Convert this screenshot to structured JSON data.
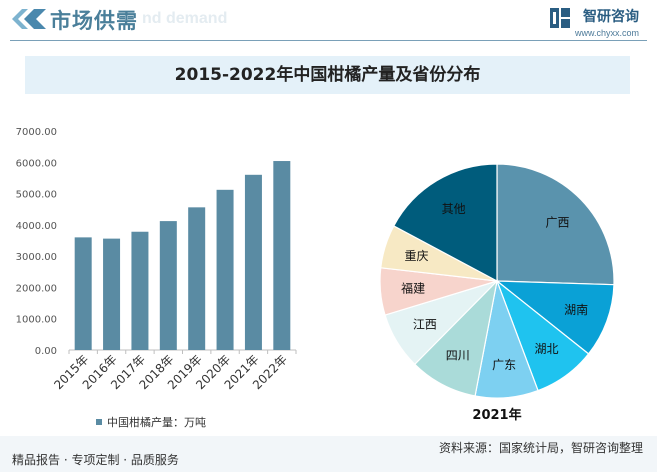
{
  "header": {
    "section_title": "市场供需",
    "section_title_en": "nd demand",
    "logo_text": "智研咨询",
    "logo_url": "www.chyxx.com"
  },
  "title": "2015-2022年中国柑橘产量及省份分布",
  "chart_data": [
    {
      "type": "bar",
      "categories": [
        "2015年",
        "2016年",
        "2017年",
        "2018年",
        "2019年",
        "2020年",
        "2021年",
        "2022年"
      ],
      "values": [
        3600,
        3560,
        3780,
        4120,
        4560,
        5120,
        5600,
        6040
      ],
      "ylim": [
        0,
        7000
      ],
      "yticks": [
        "0.00",
        "1000.00",
        "2000.00",
        "3000.00",
        "4000.00",
        "5000.00",
        "6000.00",
        "7000.00"
      ],
      "legend": "中国柑橘产量：万吨",
      "color": "#5a8ba3"
    },
    {
      "type": "pie",
      "title": "2021年",
      "labels": [
        "广西",
        "湖南",
        "湖北",
        "广东",
        "四川",
        "江西",
        "福建",
        "重庆",
        "其他"
      ],
      "values": [
        25.5,
        10.2,
        8.6,
        8.7,
        9.4,
        7.9,
        6.5,
        6.0,
        17.2
      ],
      "colors": [
        "#5a93ad",
        "#0aa1d6",
        "#1fc3ef",
        "#7dd0f1",
        "#aadbd9",
        "#e4f3f4",
        "#f7d4cc",
        "#f7e9c4",
        "#005c7c"
      ]
    }
  ],
  "footer": {
    "left": "精品报告 · 专项定制 · 品质服务",
    "right": "资料来源：国家统计局，智研咨询整理"
  }
}
